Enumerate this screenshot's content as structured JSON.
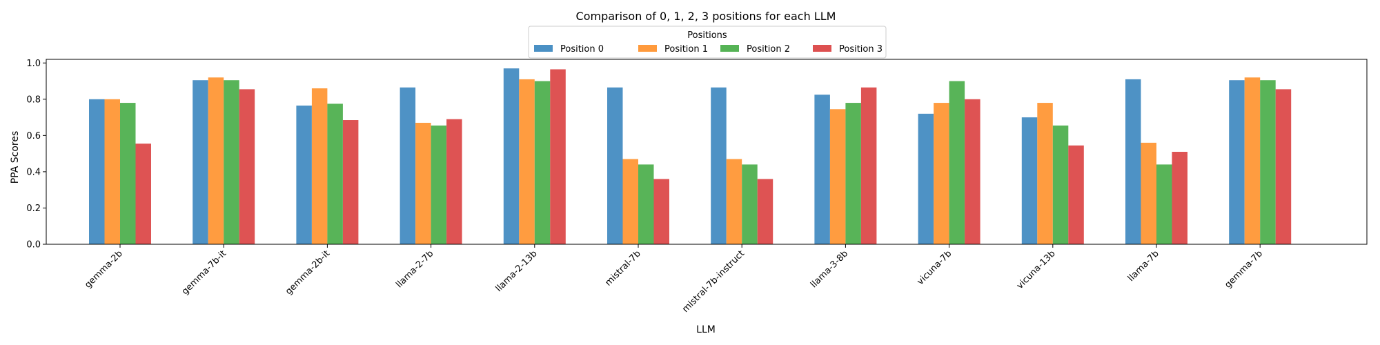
{
  "chart_data": {
    "type": "bar",
    "title": "Comparison of 0, 1, 2, 3 positions for each LLM",
    "xlabel": "LLM",
    "ylabel": "PPA Scores",
    "ylim": [
      0,
      1.02
    ],
    "yticks": [
      "0.0",
      "0.2",
      "0.4",
      "0.6",
      "0.8",
      "1.0"
    ],
    "grid": false,
    "legend": {
      "title": "Positions",
      "placement": "top-center"
    },
    "categories": [
      "gemma-2b",
      "gemma-7b-it",
      "gemma-2b-it",
      "llama-2-7b",
      "llama-2-13b",
      "mistral-7b",
      "mistral-7b-instruct",
      "llama-3-8b",
      "vicuna-7b",
      "vicuna-13b",
      "llama-7b",
      "gemma-7b"
    ],
    "series": [
      {
        "name": "Position 0",
        "color": "#4a90c4",
        "values": [
          0.8,
          0.905,
          0.765,
          0.865,
          0.97,
          0.865,
          0.865,
          0.825,
          0.72,
          0.7,
          0.91,
          0.905
        ]
      },
      {
        "name": "Position 1",
        "color": "#ff9a3c",
        "values": [
          0.8,
          0.92,
          0.86,
          0.67,
          0.91,
          0.47,
          0.47,
          0.745,
          0.78,
          0.78,
          0.56,
          0.92
        ]
      },
      {
        "name": "Position 2",
        "color": "#55b355",
        "values": [
          0.78,
          0.905,
          0.775,
          0.655,
          0.9,
          0.44,
          0.44,
          0.78,
          0.9,
          0.655,
          0.44,
          0.905
        ]
      },
      {
        "name": "Position 3",
        "color": "#dd5050",
        "values": [
          0.555,
          0.855,
          0.685,
          0.69,
          0.965,
          0.36,
          0.36,
          0.865,
          0.8,
          0.545,
          0.51,
          0.855
        ]
      }
    ]
  }
}
